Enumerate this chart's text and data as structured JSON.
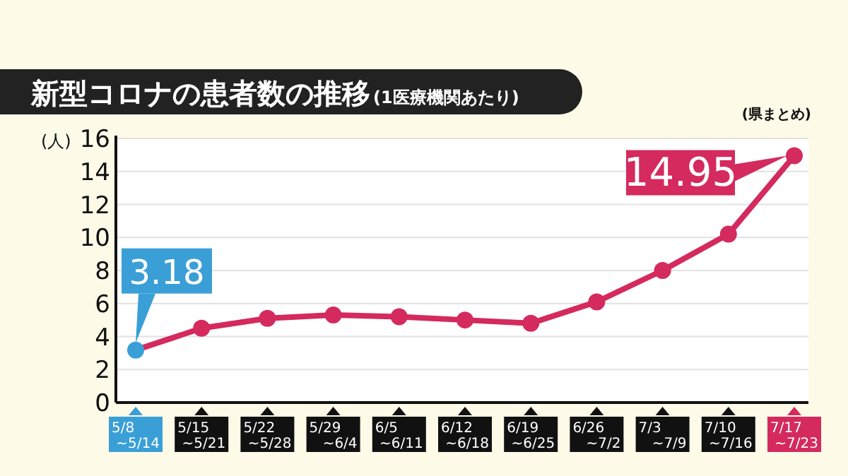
{
  "chart_data": {
    "type": "line",
    "title": "新型コロナの患者数の推移",
    "subtitle": "(1医療機関あたり)",
    "ylabel": "(人)",
    "annotations": [
      "(県まとめ)"
    ],
    "categories": [
      "5/8\n~5/14",
      "5/15\n~5/21",
      "5/22\n~5/28",
      "5/29\n~6/4",
      "6/5\n~6/11",
      "6/12\n~6/18",
      "6/19\n~6/25",
      "6/26\n~7/2",
      "7/3\n~7/9",
      "7/10\n~7/16",
      "7/17\n~7/23"
    ],
    "series": [
      {
        "color": "#d42a5e",
        "colors": [
          "#3a9fd6",
          "#d42a5e",
          "#d42a5e",
          "#d42a5e",
          "#d42a5e",
          "#d42a5e",
          "#d42a5e",
          "#d42a5e",
          "#d42a5e",
          "#d42a5e",
          "#d42a5e"
        ],
        "values": [
          3.18,
          4.5,
          5.1,
          5.3,
          5.2,
          5.0,
          4.8,
          6.1,
          8.0,
          10.2,
          14.95
        ],
        "value_labels": [
          "3.18",
          null,
          null,
          null,
          null,
          null,
          null,
          null,
          null,
          null,
          "14.95"
        ]
      }
    ],
    "ylim": [
      0,
      16
    ],
    "yticks": [
      0,
      2,
      4,
      6,
      8,
      10,
      12,
      14,
      16
    ],
    "grid": "y",
    "marker": "circle",
    "line_style": "solid"
  }
}
